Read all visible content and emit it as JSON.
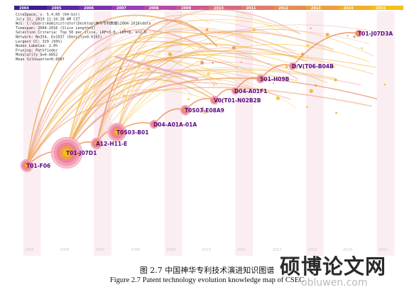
{
  "timeline": {
    "years": [
      "2004",
      "2005",
      "2006",
      "2007",
      "2008",
      "2009",
      "2010",
      "2011",
      "2012",
      "2013",
      "2014",
      "2015"
    ],
    "colors": [
      "#3b1f8f",
      "#5a2aa0",
      "#7a34b0",
      "#9a3eb8",
      "#b54aad",
      "#c8579a",
      "#d66a86",
      "#e07c6e",
      "#e68d55",
      "#ec9f3e",
      "#f0b028",
      "#f5c018"
    ]
  },
  "bottom_years": [
    "2005",
    "2006",
    "2007",
    "2008",
    "2009",
    "2010",
    "2011",
    "2012",
    "2013",
    "2014",
    "2015"
  ],
  "info": [
    "CiteSpace, v. 5.4.R5 (64-bit)",
    "July 31, 2019 11:16:38 AM CST",
    "WoS: C:\\Users\\Administrator\\Desktop\\神华专利数据\\2004-2016\\data",
    "Timespan: 2004-2016 (Slice Length=1)",
    "Selection Criteria: Top 50 per slice, LRF=3.0, LBY=8, e=2.0",
    "Network: N=354, E=1037 (Density=0.0165)",
    "Largest CC: 329 (93%)",
    "Nodes Labeled: 2.0%",
    "Pruning: Pathfinder",
    "Modularity Q=0.6852",
    "Mean Silhouette=0.6097"
  ],
  "nodes": [
    {
      "label": "T01-F06",
      "size": "medium"
    },
    {
      "label": "T01-J07D1",
      "size": "large"
    },
    {
      "label": "A12-H11-E",
      "size": "small"
    },
    {
      "label": "T0S03-B01",
      "size": "medium"
    },
    {
      "label": "D04-A01A-01A",
      "size": "small"
    },
    {
      "label": "T0S03-E08A9",
      "size": "small"
    },
    {
      "label": "V0(T01-N02B2B",
      "size": "small"
    },
    {
      "label": "D04-A01F1",
      "size": "small"
    },
    {
      "label": "S01-H09B",
      "size": "small"
    },
    {
      "label": "D/V(T06-B04B",
      "size": "small"
    },
    {
      "label": "T01-J07D3A",
      "size": "small"
    }
  ],
  "caption": {
    "chinese": "图 2.7   中国神华专利技术演进知识图谱",
    "english": "Figure 2.7 Patent technology evolution knowledge map of CSEC"
  },
  "watermark": {
    "chinese": "硕博论文网",
    "url": "obluwen.com"
  }
}
